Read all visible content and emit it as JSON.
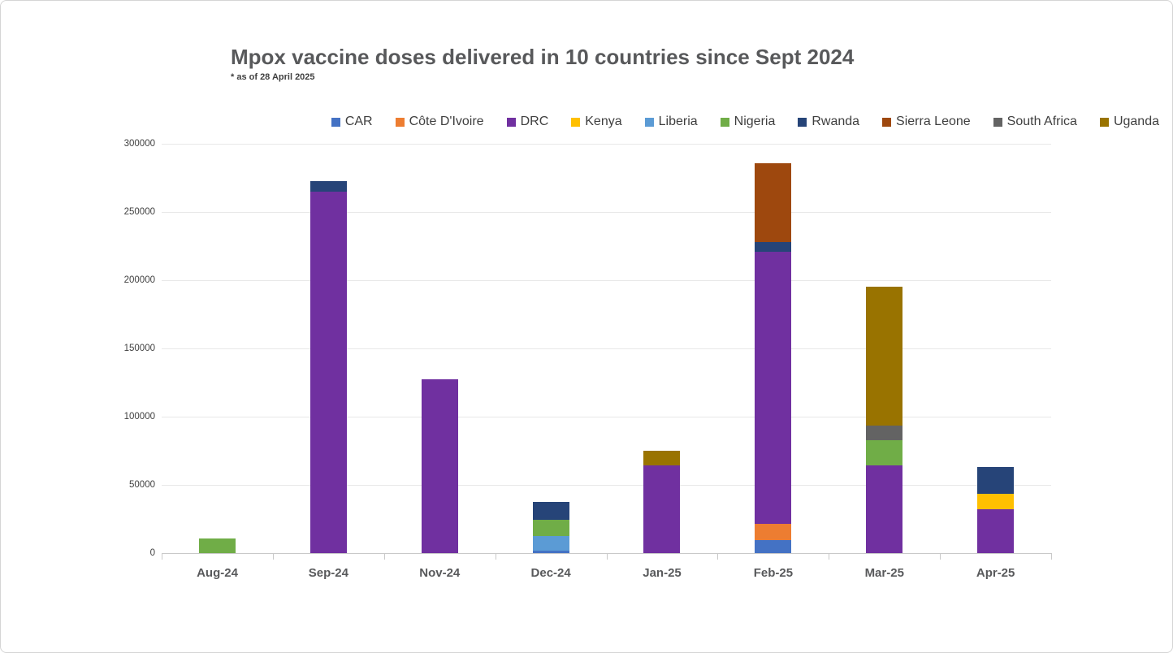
{
  "chart_data": {
    "type": "bar",
    "stacked": true,
    "title": "Mpox vaccine doses delivered in 10 countries since Sept 2024",
    "subtitle": "* as of 28 April 2025",
    "categories": [
      "Aug-24",
      "Sep-24",
      "Nov-24",
      "Dec-24",
      "Jan-25",
      "Feb-25",
      "Mar-25",
      "Apr-25"
    ],
    "series": [
      {
        "name": "CAR",
        "color": "#4472c4",
        "values": [
          0,
          0,
          0,
          2000,
          0,
          9500,
          0,
          0
        ]
      },
      {
        "name": "Côte D'Ivoire",
        "color": "#ed7d31",
        "values": [
          0,
          0,
          0,
          0,
          0,
          12000,
          0,
          0
        ]
      },
      {
        "name": "DRC",
        "color": "#7030a0",
        "values": [
          0,
          265000,
          127500,
          0,
          64500,
          199500,
          64500,
          32000
        ]
      },
      {
        "name": "Kenya",
        "color": "#ffc000",
        "values": [
          0,
          0,
          0,
          0,
          0,
          0,
          0,
          11500
        ]
      },
      {
        "name": "Liberia",
        "color": "#5b9bd5",
        "values": [
          0,
          0,
          0,
          10500,
          0,
          0,
          0,
          0
        ]
      },
      {
        "name": "Nigeria",
        "color": "#70ad47",
        "values": [
          10500,
          0,
          0,
          12000,
          0,
          0,
          18000,
          0
        ]
      },
      {
        "name": "Rwanda",
        "color": "#264478",
        "values": [
          0,
          7500,
          0,
          13000,
          0,
          7000,
          0,
          19500
        ]
      },
      {
        "name": "Sierra Leone",
        "color": "#9e480e",
        "values": [
          0,
          0,
          0,
          0,
          0,
          58000,
          0,
          0
        ]
      },
      {
        "name": "South Africa",
        "color": "#636363",
        "values": [
          0,
          0,
          0,
          0,
          0,
          0,
          11000,
          0
        ]
      },
      {
        "name": "Uganda",
        "color": "#997300",
        "values": [
          0,
          0,
          0,
          0,
          10500,
          0,
          101500,
          0
        ]
      }
    ],
    "y_ticks": [
      0,
      50000,
      100000,
      150000,
      200000,
      250000,
      300000
    ],
    "ylim": [
      0,
      300000
    ],
    "grid": true,
    "legend_position": "top"
  }
}
